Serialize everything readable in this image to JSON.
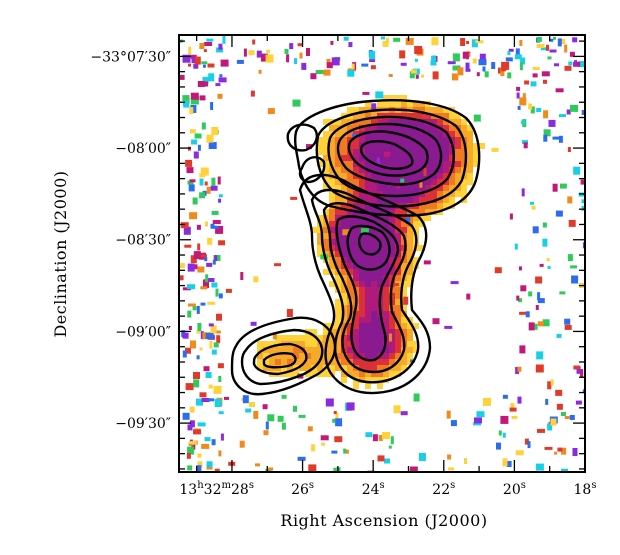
{
  "chart_data": {
    "type": "heatmap",
    "title": "",
    "xlabel": "Right Ascension (J2000)",
    "ylabel": "Declination (J2000)",
    "x_ticks": [
      {
        "ra_sec": 28,
        "hours": "13",
        "minutes": "32",
        "seconds": "28",
        "label": "13h32m28s"
      },
      {
        "ra_sec": 26,
        "seconds": "26",
        "label": "26s"
      },
      {
        "ra_sec": 24,
        "seconds": "24",
        "label": "24s"
      },
      {
        "ra_sec": 22,
        "seconds": "22",
        "label": "22s"
      },
      {
        "ra_sec": 20,
        "seconds": "20",
        "label": "20s"
      },
      {
        "ra_sec": 18,
        "seconds": "18",
        "label": "18s"
      }
    ],
    "y_ticks": [
      {
        "dec_arcsec": 450,
        "label": "−33°07′30″"
      },
      {
        "dec_arcsec": 480,
        "label": "−08′00″"
      },
      {
        "dec_arcsec": 510,
        "label": "−08′30″"
      },
      {
        "dec_arcsec": 540,
        "label": "−09′00″"
      },
      {
        "dec_arcsec": 570,
        "label": "−09′30″"
      }
    ],
    "xlim_ra_sec": [
      29.5,
      18
    ],
    "ylim_dec_arcsec_below_33deg": [
      443,
      586
    ],
    "colormap": [
      "#2b6cf0",
      "#17d0e8",
      "#2ecb5a",
      "#8a2be2",
      "#c2187a",
      "#e03b2a",
      "#f08a1c",
      "#ffd23a"
    ],
    "overlay": "black radio contours (7 levels)",
    "grid": false,
    "legend": "none"
  }
}
